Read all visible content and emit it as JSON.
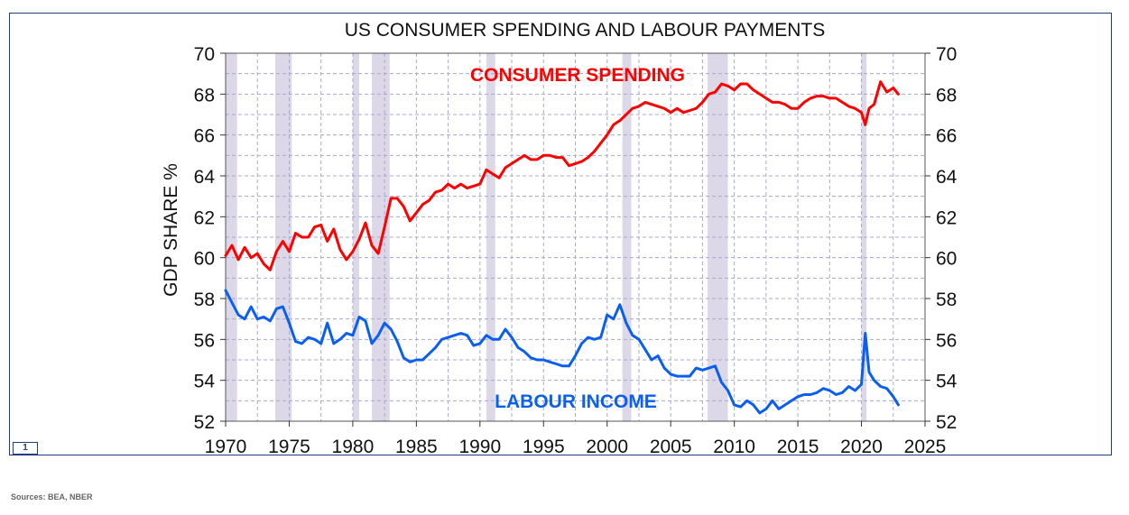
{
  "chart_data": {
    "type": "line",
    "title": "US CONSUMER SPENDING AND LABOUR PAYMENTS",
    "ylabel": "GDP SHARE %",
    "xlabel": "",
    "xlim": [
      1970,
      2025
    ],
    "ylim": [
      52,
      70
    ],
    "xticks": [
      1970,
      1975,
      1980,
      1985,
      1990,
      1995,
      2000,
      2005,
      2010,
      2015,
      2020,
      2025
    ],
    "yticks": [
      52,
      54,
      56,
      58,
      60,
      62,
      64,
      66,
      68,
      70
    ],
    "grid": true,
    "recessions": [
      [
        1969.9,
        1970.9
      ],
      [
        1973.9,
        1975.2
      ],
      [
        1980.0,
        1980.5
      ],
      [
        1981.5,
        1982.9
      ],
      [
        1990.5,
        1991.2
      ],
      [
        2001.2,
        2001.9
      ],
      [
        2007.9,
        2009.5
      ],
      [
        2020.0,
        2020.4
      ]
    ],
    "series": [
      {
        "name": "CONSUMER SPENDING",
        "color": "#ff0000",
        "x": [
          1970.0,
          1970.5,
          1971.0,
          1971.5,
          1972.0,
          1972.5,
          1973.0,
          1973.5,
          1974.0,
          1974.5,
          1975.0,
          1975.5,
          1976.0,
          1976.5,
          1977.0,
          1977.5,
          1978.0,
          1978.5,
          1979.0,
          1979.5,
          1980.0,
          1980.5,
          1981.0,
          1981.5,
          1982.0,
          1982.5,
          1983.0,
          1983.5,
          1984.0,
          1984.5,
          1985.0,
          1985.5,
          1986.0,
          1986.5,
          1987.0,
          1987.5,
          1988.0,
          1988.5,
          1989.0,
          1989.5,
          1990.0,
          1990.5,
          1991.0,
          1991.5,
          1992.0,
          1992.5,
          1993.0,
          1993.5,
          1994.0,
          1994.5,
          1995.0,
          1995.5,
          1996.0,
          1996.5,
          1997.0,
          1997.5,
          1998.0,
          1998.5,
          1999.0,
          1999.5,
          2000.0,
          2000.5,
          2001.0,
          2001.5,
          2002.0,
          2002.5,
          2003.0,
          2003.5,
          2004.0,
          2004.5,
          2005.0,
          2005.5,
          2006.0,
          2006.5,
          2007.0,
          2007.5,
          2008.0,
          2008.5,
          2009.0,
          2009.5,
          2010.0,
          2010.5,
          2011.0,
          2011.5,
          2012.0,
          2012.5,
          2013.0,
          2013.5,
          2014.0,
          2014.5,
          2015.0,
          2015.5,
          2016.0,
          2016.5,
          2017.0,
          2017.5,
          2018.0,
          2018.5,
          2019.0,
          2019.5,
          2020.0,
          2020.3,
          2020.6,
          2021.0,
          2021.5,
          2022.0,
          2022.5,
          2022.9
        ],
        "values": [
          60.1,
          60.6,
          59.9,
          60.5,
          60.0,
          60.2,
          59.7,
          59.4,
          60.3,
          60.8,
          60.3,
          61.2,
          61.0,
          61.0,
          61.5,
          61.6,
          60.8,
          61.4,
          60.4,
          59.9,
          60.3,
          60.9,
          61.7,
          60.6,
          60.2,
          61.5,
          62.9,
          62.9,
          62.5,
          61.8,
          62.2,
          62.6,
          62.8,
          63.2,
          63.3,
          63.6,
          63.4,
          63.6,
          63.4,
          63.5,
          63.6,
          64.3,
          64.1,
          63.9,
          64.4,
          64.6,
          64.8,
          65.0,
          64.8,
          64.8,
          65.0,
          65.0,
          64.9,
          64.9,
          64.5,
          64.6,
          64.7,
          64.9,
          65.2,
          65.6,
          66.0,
          66.5,
          66.7,
          67.0,
          67.3,
          67.4,
          67.6,
          67.5,
          67.4,
          67.3,
          67.1,
          67.3,
          67.1,
          67.2,
          67.3,
          67.6,
          68.0,
          68.1,
          68.5,
          68.4,
          68.2,
          68.5,
          68.5,
          68.2,
          68.0,
          67.8,
          67.6,
          67.6,
          67.5,
          67.3,
          67.3,
          67.6,
          67.8,
          67.9,
          67.9,
          67.8,
          67.8,
          67.6,
          67.4,
          67.3,
          67.1,
          66.5,
          67.3,
          67.5,
          68.6,
          68.1,
          68.3,
          68.0
        ]
      },
      {
        "name": "LABOUR INCOME",
        "color": "#0a5ff0",
        "x": [
          1970.0,
          1970.5,
          1971.0,
          1971.5,
          1972.0,
          1972.5,
          1973.0,
          1973.5,
          1974.0,
          1974.5,
          1975.0,
          1975.5,
          1976.0,
          1976.5,
          1977.0,
          1977.5,
          1978.0,
          1978.5,
          1979.0,
          1979.5,
          1980.0,
          1980.5,
          1981.0,
          1981.5,
          1982.0,
          1982.5,
          1983.0,
          1983.5,
          1984.0,
          1984.5,
          1985.0,
          1985.5,
          1986.0,
          1986.5,
          1987.0,
          1987.5,
          1988.0,
          1988.5,
          1989.0,
          1989.5,
          1990.0,
          1990.5,
          1991.0,
          1991.5,
          1992.0,
          1992.5,
          1993.0,
          1993.5,
          1994.0,
          1994.5,
          1995.0,
          1995.5,
          1996.0,
          1996.5,
          1997.0,
          1997.5,
          1998.0,
          1998.5,
          1999.0,
          1999.5,
          2000.0,
          2000.5,
          2001.0,
          2001.5,
          2002.0,
          2002.5,
          2003.0,
          2003.5,
          2004.0,
          2004.5,
          2005.0,
          2005.5,
          2006.0,
          2006.5,
          2007.0,
          2007.5,
          2008.0,
          2008.5,
          2009.0,
          2009.5,
          2010.0,
          2010.5,
          2011.0,
          2011.5,
          2012.0,
          2012.5,
          2013.0,
          2013.5,
          2014.0,
          2014.5,
          2015.0,
          2015.5,
          2016.0,
          2016.5,
          2017.0,
          2017.5,
          2018.0,
          2018.5,
          2019.0,
          2019.5,
          2020.0,
          2020.3,
          2020.6,
          2021.0,
          2021.5,
          2022.0,
          2022.5,
          2022.9
        ],
        "values": [
          58.4,
          57.8,
          57.2,
          57.0,
          57.6,
          57.0,
          57.1,
          56.9,
          57.5,
          57.6,
          56.8,
          55.9,
          55.8,
          56.1,
          56.0,
          55.8,
          56.8,
          55.8,
          56.0,
          56.3,
          56.2,
          57.1,
          56.9,
          55.8,
          56.2,
          56.8,
          56.5,
          55.9,
          55.1,
          54.9,
          55.0,
          55.0,
          55.3,
          55.6,
          56.0,
          56.1,
          56.2,
          56.3,
          56.2,
          55.7,
          55.8,
          56.2,
          56.0,
          56.0,
          56.5,
          56.1,
          55.6,
          55.4,
          55.1,
          55.0,
          55.0,
          54.9,
          54.8,
          54.7,
          54.7,
          55.2,
          55.8,
          56.1,
          56.0,
          56.1,
          57.2,
          57.0,
          57.7,
          56.8,
          56.2,
          56.0,
          55.5,
          55.0,
          55.2,
          54.6,
          54.3,
          54.2,
          54.2,
          54.2,
          54.6,
          54.5,
          54.6,
          54.7,
          53.9,
          53.5,
          52.8,
          52.7,
          53.0,
          52.8,
          52.4,
          52.6,
          53.0,
          52.6,
          52.8,
          53.0,
          53.2,
          53.3,
          53.3,
          53.4,
          53.6,
          53.5,
          53.3,
          53.4,
          53.7,
          53.5,
          53.8,
          56.3,
          54.4,
          54.0,
          53.7,
          53.6,
          53.2,
          52.8
        ]
      }
    ],
    "annotations": [
      {
        "text": "CONSUMER SPENDING",
        "color": "#ff0000"
      },
      {
        "text": "LABOUR INCOME",
        "color": "#0a5ff0"
      }
    ]
  },
  "badge": "1",
  "sources": "Sources: BEA, NBER"
}
